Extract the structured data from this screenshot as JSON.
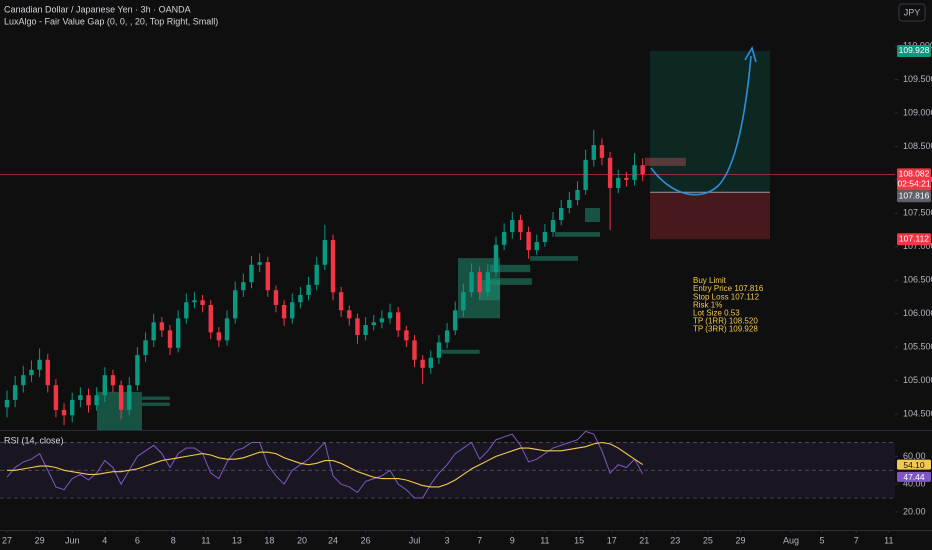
{
  "chart_data": {
    "type": "candlestick",
    "title": "Canadian Dollar / Japanese Yen · 3h · OANDA",
    "indicator": "LuxAlgo - Fair Value Gap (0, 0, , 20, Top Right, Small)",
    "currency": "JPY",
    "up_color": "#089981",
    "down_color": "#f23645",
    "x": [
      0,
      0.5,
      1,
      1.5,
      2,
      2.5,
      3,
      3.5,
      4,
      4.5,
      5,
      5.5,
      6,
      6.5,
      7,
      7.5,
      8,
      8.5,
      9,
      9.5,
      10,
      10.5,
      11,
      11.5,
      12,
      12.5,
      13,
      13.5,
      14,
      14.5,
      15,
      15.5,
      16,
      16.5,
      17,
      17.5,
      18,
      18.5,
      19,
      19.5,
      20,
      20.5,
      21,
      21.5,
      22,
      22.5,
      23,
      23.5,
      24,
      24.5,
      25,
      25.5,
      26,
      26.5,
      27,
      27.5,
      28,
      28.5,
      29,
      29.5,
      30,
      30.5,
      31,
      31.5,
      32,
      32.5,
      33,
      33.5,
      34,
      34.5,
      35,
      35.5,
      36,
      36.5,
      37,
      37.5,
      38,
      38.5,
      39
    ],
    "open": [
      104.6,
      104.71,
      104.93,
      105.08,
      105.16,
      105.31,
      104.93,
      104.56,
      104.48,
      104.71,
      104.78,
      104.63,
      104.78,
      105.08,
      104.93,
      104.56,
      104.93,
      105.38,
      105.6,
      105.87,
      105.75,
      105.49,
      105.93,
      106.17,
      106.2,
      106.13,
      105.72,
      105.6,
      105.93,
      106.35,
      106.47,
      106.73,
      106.77,
      106.35,
      106.13,
      105.93,
      106.17,
      106.28,
      106.43,
      106.73,
      107.1,
      106.32,
      106.05,
      105.93,
      105.68,
      105.83,
      105.87,
      105.93,
      106.02,
      105.75,
      105.6,
      105.31,
      105.19,
      105.34,
      105.57,
      105.75,
      106.05,
      106.32,
      106.62,
      106.32,
      106.62,
      107.03,
      107.22,
      107.4,
      107.22,
      106.95,
      107.07,
      107.22,
      107.4,
      107.58,
      107.7,
      107.85,
      108.3,
      108.52,
      108.33,
      107.88,
      108.03,
      108.0,
      108.22
    ],
    "high": [
      104.85,
      105.07,
      105.22,
      105.3,
      105.48,
      105.4,
      105.02,
      104.66,
      104.82,
      104.9,
      104.88,
      104.9,
      105.2,
      105.16,
      105.0,
      105.05,
      105.5,
      105.72,
      106.0,
      105.95,
      105.83,
      106.05,
      106.3,
      106.32,
      106.28,
      106.2,
      105.8,
      106.05,
      106.48,
      106.6,
      106.86,
      106.9,
      106.85,
      106.42,
      106.2,
      106.3,
      106.4,
      106.55,
      106.85,
      107.33,
      107.18,
      106.4,
      106.12,
      106.0,
      105.95,
      105.98,
      106.05,
      106.15,
      106.1,
      105.82,
      105.68,
      105.38,
      105.45,
      105.68,
      105.86,
      106.18,
      106.45,
      106.75,
      106.7,
      106.74,
      107.15,
      107.35,
      107.52,
      107.48,
      107.3,
      107.18,
      107.34,
      107.52,
      107.7,
      107.82,
      107.98,
      108.45,
      108.75,
      108.62,
      108.42,
      108.15,
      108.12,
      108.4,
      108.32
    ],
    "low": [
      104.45,
      104.6,
      104.82,
      104.98,
      105.05,
      104.82,
      104.45,
      104.33,
      104.38,
      104.6,
      104.52,
      104.55,
      104.68,
      104.82,
      104.42,
      104.48,
      104.85,
      105.28,
      105.5,
      105.65,
      105.38,
      105.42,
      105.85,
      106.08,
      106.02,
      105.62,
      105.5,
      105.52,
      105.85,
      106.25,
      106.38,
      106.62,
      106.25,
      106.02,
      105.82,
      105.85,
      106.08,
      106.2,
      106.35,
      106.65,
      106.2,
      105.95,
      105.82,
      105.55,
      105.6,
      105.75,
      105.78,
      105.85,
      105.65,
      105.5,
      105.2,
      104.95,
      105.1,
      105.25,
      105.48,
      105.68,
      105.95,
      106.25,
      106.2,
      106.25,
      106.55,
      106.95,
      107.12,
      107.1,
      106.82,
      106.88,
      107.0,
      107.15,
      107.32,
      107.5,
      107.62,
      107.78,
      108.2,
      108.22,
      107.25,
      107.8,
      107.9,
      107.92,
      107.98
    ],
    "close": [
      104.71,
      104.93,
      105.08,
      105.16,
      105.31,
      104.93,
      104.56,
      104.48,
      104.71,
      104.78,
      104.63,
      104.78,
      105.08,
      104.93,
      104.56,
      104.93,
      105.38,
      105.6,
      105.87,
      105.75,
      105.49,
      105.93,
      106.17,
      106.2,
      106.13,
      105.72,
      105.6,
      105.93,
      106.35,
      106.47,
      106.73,
      106.77,
      106.35,
      106.13,
      105.93,
      106.17,
      106.28,
      106.43,
      106.73,
      107.1,
      106.32,
      106.05,
      105.93,
      105.68,
      105.83,
      105.87,
      105.93,
      106.02,
      105.75,
      105.6,
      105.31,
      105.19,
      105.34,
      105.57,
      105.75,
      106.05,
      106.32,
      106.62,
      106.32,
      106.62,
      107.03,
      107.22,
      107.4,
      107.22,
      106.95,
      107.07,
      107.22,
      107.4,
      107.58,
      107.7,
      107.85,
      108.3,
      108.52,
      108.33,
      107.88,
      108.03,
      108.0,
      108.22,
      108.082
    ],
    "xlim": [
      -0.43,
      54.48
    ],
    "xticks": [
      {
        "value": 0,
        "label": "27"
      },
      {
        "value": 2,
        "label": "29"
      },
      {
        "value": 4,
        "label": "Jun"
      },
      {
        "value": 6,
        "label": "4"
      },
      {
        "value": 8,
        "label": "6"
      },
      {
        "value": 10.2,
        "label": "8"
      },
      {
        "value": 12.2,
        "label": "11"
      },
      {
        "value": 14.1,
        "label": "13"
      },
      {
        "value": 16.1,
        "label": "18"
      },
      {
        "value": 18.1,
        "label": "20"
      },
      {
        "value": 20,
        "label": "24"
      },
      {
        "value": 22,
        "label": "26"
      },
      {
        "value": 25,
        "label": "Jul"
      },
      {
        "value": 27,
        "label": "3"
      },
      {
        "value": 29,
        "label": "7"
      },
      {
        "value": 31,
        "label": "9"
      },
      {
        "value": 33,
        "label": "11"
      },
      {
        "value": 35.1,
        "label": "15"
      },
      {
        "value": 37.1,
        "label": "17"
      },
      {
        "value": 39.1,
        "label": "21"
      },
      {
        "value": 41,
        "label": "23"
      },
      {
        "value": 43,
        "label": "25"
      },
      {
        "value": 45,
        "label": "29"
      },
      {
        "value": 48.1,
        "label": "Aug"
      },
      {
        "value": 50,
        "label": "5"
      },
      {
        "value": 52.1,
        "label": "7"
      },
      {
        "value": 54.1,
        "label": "11"
      }
    ],
    "ylim": [
      104.26,
      110.69
    ],
    "yticks": [
      {
        "value": 104.5,
        "label": "104.500"
      },
      {
        "value": 105,
        "label": "105.000"
      },
      {
        "value": 105.5,
        "label": "105.500"
      },
      {
        "value": 106,
        "label": "106.000"
      },
      {
        "value": 106.5,
        "label": "106.500"
      },
      {
        "value": 107,
        "label": "107.000"
      },
      {
        "value": 107.5,
        "label": "107.500"
      },
      {
        "value": 108,
        "label": "108.000"
      },
      {
        "value": 108.5,
        "label": "108.500"
      },
      {
        "value": 109,
        "label": "109.000"
      },
      {
        "value": 109.5,
        "label": "109.500"
      },
      {
        "value": 110,
        "label": "110.000"
      }
    ],
    "last_price": {
      "value": 108.082,
      "countdown": "02:54:21",
      "color": "#f23645"
    },
    "position": {
      "entry": 107.816,
      "stop": 107.112,
      "target": 109.928,
      "note": [
        "Buy Limit",
        "Entry Price 107.816",
        "Stop Loss 107.112",
        "Risk 1%",
        "Lot Size 0.53",
        "TP (1RR) 108.520",
        "TP (3RR) 109.928"
      ]
    },
    "fair_value_gaps": [
      {
        "x0": 5.52,
        "x1": 8.28,
        "top": 104.83,
        "bottom": 104.26,
        "color": "#1f8a70"
      },
      {
        "x0": 8.28,
        "x1": 10.0,
        "top": 104.76,
        "bottom": 104.71,
        "color": "#1f8a70"
      },
      {
        "x0": 8.28,
        "x1": 10.0,
        "top": 104.67,
        "bottom": 104.62,
        "color": "#1f8a70"
      },
      {
        "x0": 26.56,
        "x1": 29.0,
        "top": 105.46,
        "bottom": 105.4,
        "color": "#1f8a70"
      },
      {
        "x0": 27.67,
        "x1": 30.25,
        "top": 106.83,
        "bottom": 105.93,
        "color": "#1f8a70"
      },
      {
        "x0": 29.0,
        "x1": 30.25,
        "top": 106.5,
        "bottom": 106.2,
        "color": "#1f8a70"
      },
      {
        "x0": 29.63,
        "x1": 32.1,
        "top": 106.73,
        "bottom": 106.62,
        "color": "#1f8a70"
      },
      {
        "x0": 29.63,
        "x1": 32.2,
        "top": 106.53,
        "bottom": 106.43,
        "color": "#1f8a70"
      },
      {
        "x0": 32.1,
        "x1": 35.03,
        "top": 106.86,
        "bottom": 106.79,
        "color": "#1f8a70"
      },
      {
        "x0": 33.62,
        "x1": 36.38,
        "top": 107.22,
        "bottom": 107.15,
        "color": "#1f8a70"
      },
      {
        "x0": 35.46,
        "x1": 36.38,
        "top": 107.58,
        "bottom": 107.37,
        "color": "#1f8a70"
      },
      {
        "x0": 39.14,
        "x1": 41.66,
        "top": 108.33,
        "bottom": 108.21,
        "color": "#b33a45"
      }
    ],
    "rsi": {
      "title": "RSI (14, close)",
      "color": "#7e57c2",
      "ma_color": "#f2c94c",
      "values": [
        45,
        52,
        56,
        58,
        62,
        50,
        38,
        36,
        44,
        47,
        43,
        48,
        57,
        52,
        40,
        50,
        60,
        64,
        68,
        62,
        52,
        62,
        66,
        66,
        62,
        48,
        44,
        56,
        64,
        66,
        70,
        70,
        54,
        46,
        40,
        50,
        54,
        58,
        64,
        70,
        46,
        40,
        38,
        34,
        42,
        44,
        46,
        50,
        40,
        36,
        30,
        30,
        40,
        48,
        54,
        62,
        66,
        70,
        58,
        64,
        72,
        74,
        76,
        68,
        56,
        58,
        62,
        66,
        68,
        70,
        72,
        78,
        76,
        64,
        48,
        54,
        52,
        58,
        47.44
      ],
      "last_label": "47.44",
      "ma": [
        50,
        50,
        51,
        52,
        53,
        53,
        52,
        50,
        49,
        48,
        47,
        47,
        48,
        49,
        49,
        50,
        51,
        53,
        55,
        57,
        58,
        59,
        60,
        61,
        62,
        61,
        59,
        58,
        58,
        59,
        61,
        63,
        63,
        62,
        59,
        57,
        55,
        54,
        55,
        57,
        57,
        55,
        52,
        49,
        47,
        45,
        44,
        44,
        44,
        43,
        41,
        39,
        38,
        38,
        40,
        43,
        47,
        51,
        54,
        57,
        60,
        62,
        64,
        66,
        66,
        65,
        64,
        64,
        64,
        65,
        66,
        67,
        69,
        70,
        69,
        66,
        62,
        58,
        54.1
      ],
      "ma_last_label": "54.10",
      "ylim": [
        7,
        79
      ],
      "yticks": [
        {
          "value": 20,
          "label": "20.00"
        },
        {
          "value": 40,
          "label": "40.00"
        },
        {
          "value": 60,
          "label": "60.00"
        }
      ],
      "bands": [
        70,
        50,
        30
      ]
    }
  }
}
